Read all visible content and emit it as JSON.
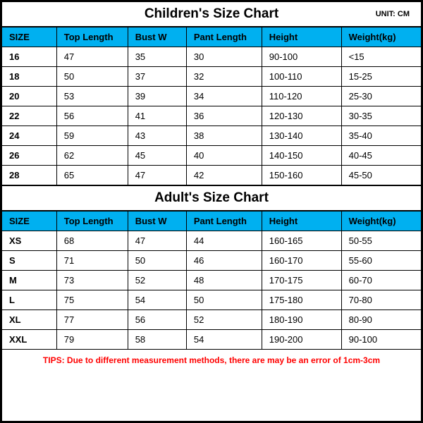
{
  "colors": {
    "header_bg": "#00b0f0",
    "border": "#000000",
    "tips": "#ff0000",
    "background": "#ffffff"
  },
  "children": {
    "title": "Children's Size Chart",
    "unit": "UNIT: CM",
    "columns": [
      "SIZE",
      "Top Length",
      "Bust W",
      "Pant Length",
      "Height",
      "Weight(kg)"
    ],
    "rows": [
      [
        "16",
        "47",
        "35",
        "30",
        "90-100",
        "<15"
      ],
      [
        "18",
        "50",
        "37",
        "32",
        "100-110",
        "15-25"
      ],
      [
        "20",
        "53",
        "39",
        "34",
        "110-120",
        "25-30"
      ],
      [
        "22",
        "56",
        "41",
        "36",
        "120-130",
        "30-35"
      ],
      [
        "24",
        "59",
        "43",
        "38",
        "130-140",
        "35-40"
      ],
      [
        "26",
        "62",
        "45",
        "40",
        "140-150",
        "40-45"
      ],
      [
        "28",
        "65",
        "47",
        "42",
        "150-160",
        "45-50"
      ]
    ]
  },
  "adult": {
    "title": "Adult's Size Chart",
    "columns": [
      "SIZE",
      "Top Length",
      "Bust W",
      "Pant Length",
      "Height",
      "Weight(kg)"
    ],
    "rows": [
      [
        "XS",
        "68",
        "47",
        "44",
        "160-165",
        "50-55"
      ],
      [
        "S",
        "71",
        "50",
        "46",
        "160-170",
        "55-60"
      ],
      [
        "M",
        "73",
        "52",
        "48",
        "170-175",
        "60-70"
      ],
      [
        "L",
        "75",
        "54",
        "50",
        "175-180",
        "70-80"
      ],
      [
        "XL",
        "77",
        "56",
        "52",
        "180-190",
        "80-90"
      ],
      [
        "XXL",
        "79",
        "58",
        "54",
        "190-200",
        "90-100"
      ]
    ]
  },
  "tips": "TIPS: Due to different measurement methods, there are may be an error of 1cm-3cm",
  "col_widths": [
    "13%",
    "17%",
    "14%",
    "18%",
    "19%",
    "19%"
  ]
}
